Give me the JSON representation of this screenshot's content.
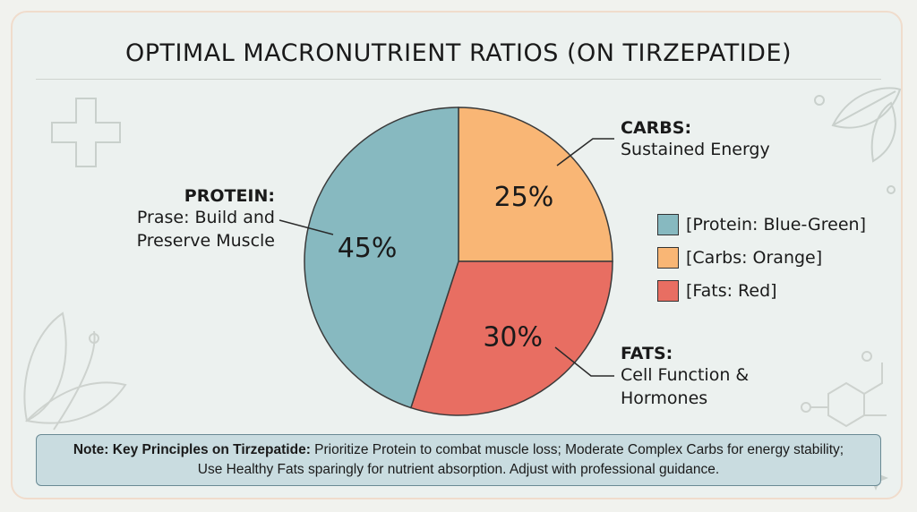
{
  "header": {
    "title": "OPTIMAL MACRONUTRIENT RATIOS (ON TIRZEPATIDE)"
  },
  "chart_data": {
    "type": "pie",
    "title": "OPTIMAL MACRONUTRIENT RATIOS (ON TIRZEPATIDE)",
    "slices": [
      {
        "name": "PROTEIN",
        "value": 45,
        "label": "45%",
        "color": "#87b9c0",
        "description": "Prase: Build and Preserve Muscle"
      },
      {
        "name": "CARBS",
        "value": 25,
        "label": "25%",
        "color": "#f9b675",
        "description": "Sustained Energy"
      },
      {
        "name": "FATS",
        "value": 30,
        "label": "30%",
        "color": "#e86e62",
        "description": "Cell Function & Hormones"
      }
    ],
    "legend": {
      "placement": "right",
      "entries": [
        "[Protein: Blue-Green]",
        "[Carbs: Orange]",
        "[Fats: Red]"
      ]
    }
  },
  "annotations": {
    "protein": {
      "head": "PROTEIN:",
      "line1": "Prase: Build and",
      "line2": "Preserve Muscle"
    },
    "carbs": {
      "head": "CARBS:",
      "line1": "Sustained Energy"
    },
    "fats": {
      "head": "FATS:",
      "line1": "Cell Function &",
      "line2": "Hormones"
    }
  },
  "note": {
    "bold": "Note: Key Principles on Tirzepatide:",
    "text1": " Prioritize Protein to combat muscle loss; Moderate Complex Carbs for energy stability;",
    "text2": "Use Healthy Fats sparingly for nutrient absorption. Adjust with professional guidance."
  }
}
